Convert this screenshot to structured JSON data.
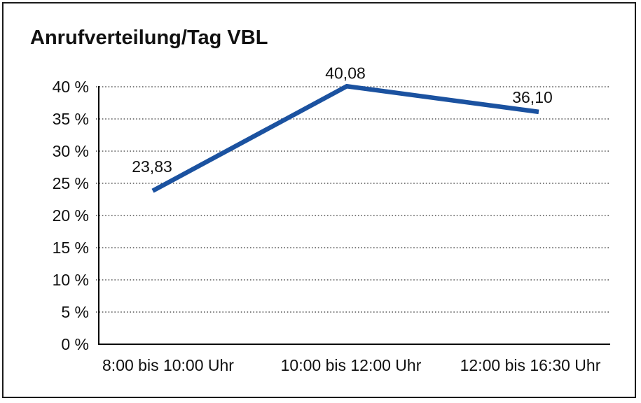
{
  "page": {
    "background": "#ffffff",
    "border_color": "#1a1a1a"
  },
  "chart_data": {
    "type": "line",
    "title": "Anrufverteilung/Tag VBL",
    "categories": [
      "8:00 bis 10:00 Uhr",
      "10:00 bis 12:00 Uhr",
      "12:00 bis 16:30 Uhr"
    ],
    "values": [
      23.83,
      40.08,
      36.1
    ],
    "point_labels": [
      "23,83",
      "40,08",
      "36,10"
    ],
    "xlabel": "",
    "ylabel": "",
    "ylim": [
      0,
      40
    ],
    "yticks": [
      0,
      5,
      10,
      15,
      20,
      25,
      30,
      35,
      40
    ],
    "ytick_labels": [
      "0 %",
      "5 %",
      "10 %",
      "15 %",
      "20 %",
      "25 %",
      "30 %",
      "35 %",
      "40 %"
    ],
    "grid": "horizontal-dotted",
    "legend": "none",
    "colors": {
      "line": "#1B52A0",
      "text": "#111111",
      "grid": "#555555",
      "axis": "#000000"
    }
  }
}
